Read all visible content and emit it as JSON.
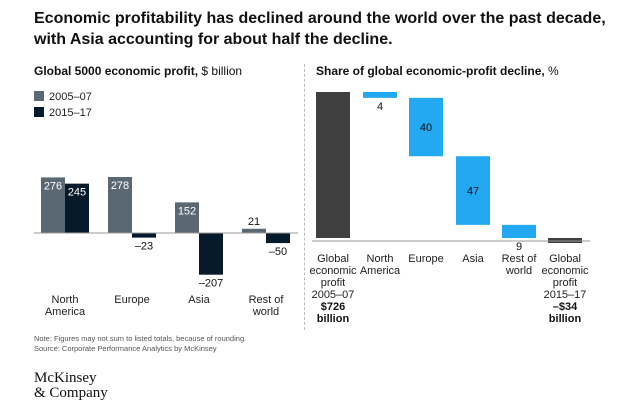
{
  "title": "Economic profitability has declined around the world over the past decade, with Asia accounting for about half the decline.",
  "colors": {
    "series_2005": "#5a6874",
    "series_2015": "#071a2b",
    "total_bar": "#3f3f3f",
    "decline_bar": "#22a9f2"
  },
  "chart_data": [
    {
      "type": "bar",
      "title": "Global 5000 economic profit,",
      "title_unit": "$ billion",
      "categories": [
        "North\nAmerica",
        "Europe",
        "Asia",
        "Rest of\nworld"
      ],
      "series": [
        {
          "name": "2005–07",
          "values": [
            276,
            278,
            152,
            21
          ],
          "labels": [
            "276",
            "278",
            "152",
            "21"
          ]
        },
        {
          "name": "2015–17",
          "values": [
            245,
            -23,
            -207,
            -50
          ],
          "labels": [
            "245",
            "–23",
            "–207",
            "–50"
          ]
        }
      ],
      "ylim": [
        -207,
        278
      ]
    },
    {
      "type": "bar",
      "subtype": "waterfall",
      "title": "Share of global economic-profit decline,",
      "title_unit": "%",
      "categories": [
        "Global\neconomic\nprofit\n2005–07",
        "North\nAmerica",
        "Europe",
        "Asia",
        "Rest of\nworld",
        "Global\neconomic\nprofit\n2015–17"
      ],
      "values": [
        100,
        4,
        40,
        47,
        9,
        0
      ],
      "labels": [
        "",
        "4",
        "40",
        "47",
        "9",
        ""
      ],
      "totals": [
        "$726\nbillion",
        "",
        "",
        "",
        "",
        "–$34\nbillion"
      ]
    }
  ],
  "footnote": {
    "note": "Note: Figures may not sum to listed totals, because of rounding.",
    "source": "Source: Corporate Performance Analytics by McKinsey"
  },
  "logo": {
    "line1": "McKinsey",
    "line2": "& Company"
  }
}
